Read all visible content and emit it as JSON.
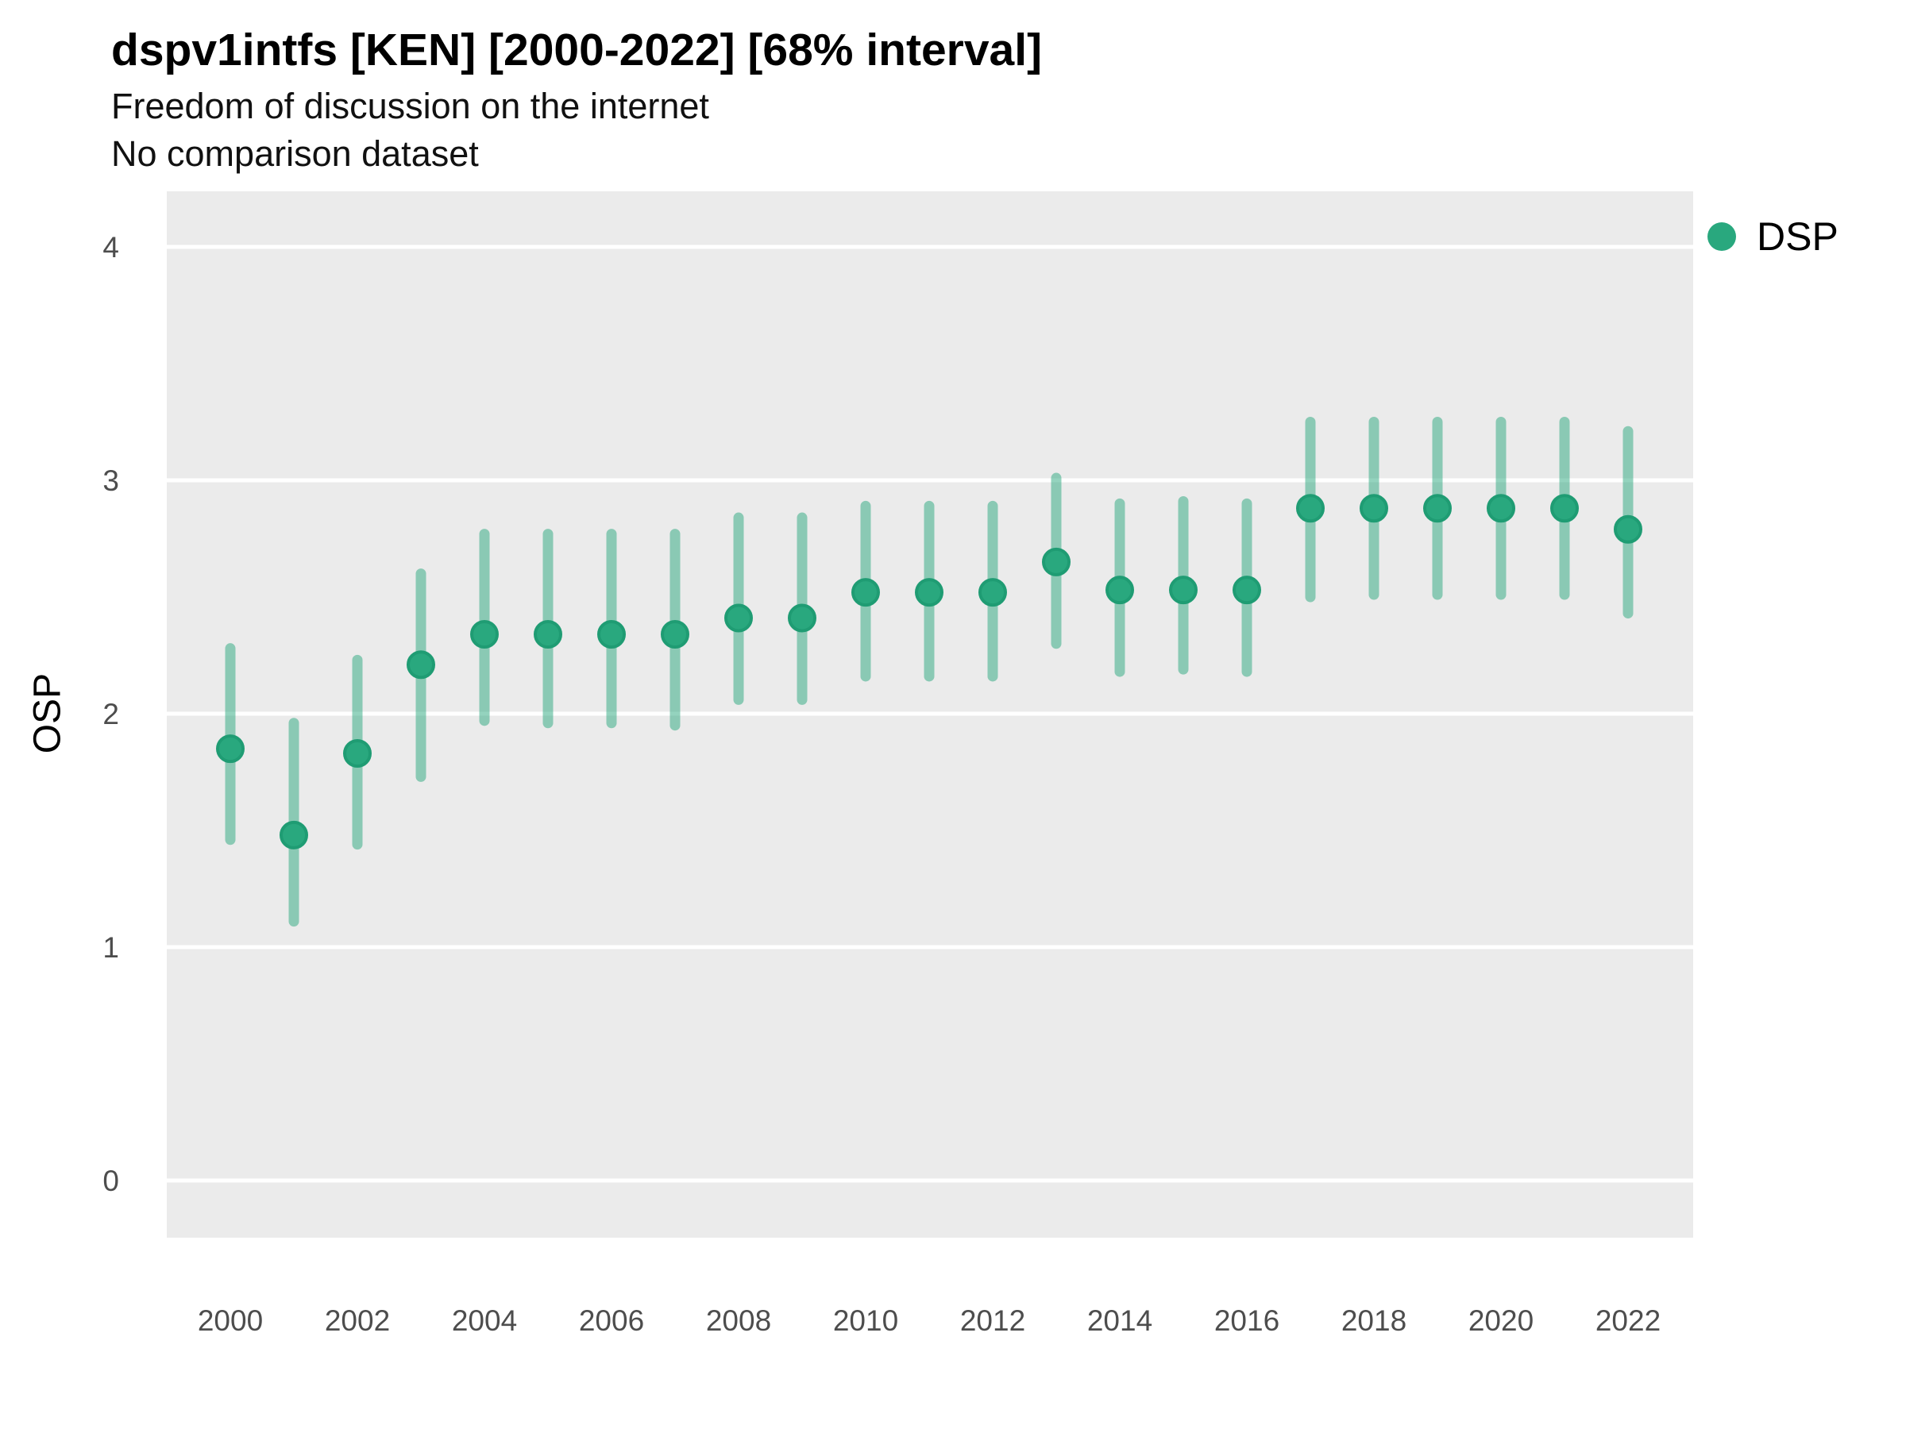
{
  "chart_data": {
    "type": "pointrange",
    "title": "dspv1intfs [KEN] [2000-2022] [68% interval]",
    "subtitle": "Freedom of discussion on the internet",
    "note": "No comparison dataset",
    "ylabel": "OSP",
    "xlabel": "",
    "interval_level": "68%",
    "legend_position": "right",
    "grid": "horizontal-major-only",
    "ylim": [
      -0.25,
      4.25
    ],
    "y_ticks": [
      0,
      1,
      2,
      3,
      4
    ],
    "x": [
      2000,
      2001,
      2002,
      2003,
      2004,
      2005,
      2006,
      2007,
      2008,
      2009,
      2010,
      2011,
      2012,
      2013,
      2014,
      2015,
      2016,
      2017,
      2018,
      2019,
      2020,
      2021,
      2022
    ],
    "x_tick_labels": [
      "2000",
      "2002",
      "2004",
      "2006",
      "2008",
      "2010",
      "2012",
      "2014",
      "2016",
      "2018",
      "2020",
      "2022"
    ],
    "series": [
      {
        "name": "DSP",
        "median": [
          1.85,
          1.48,
          1.83,
          2.21,
          2.34,
          2.34,
          2.34,
          2.34,
          2.41,
          2.41,
          2.52,
          2.52,
          2.52,
          2.65,
          2.53,
          2.53,
          2.53,
          2.88,
          2.88,
          2.88,
          2.88,
          2.88,
          2.79
        ],
        "lower": [
          1.46,
          1.11,
          1.44,
          1.73,
          1.97,
          1.96,
          1.96,
          1.95,
          2.06,
          2.06,
          2.16,
          2.16,
          2.16,
          2.3,
          2.18,
          2.19,
          2.18,
          2.5,
          2.51,
          2.51,
          2.51,
          2.51,
          2.43
        ],
        "upper": [
          2.28,
          1.96,
          2.23,
          2.6,
          2.77,
          2.77,
          2.77,
          2.77,
          2.84,
          2.84,
          2.89,
          2.89,
          2.89,
          3.01,
          2.9,
          2.91,
          2.9,
          3.25,
          3.25,
          3.25,
          3.25,
          3.25,
          3.21
        ]
      }
    ],
    "colors": {
      "point_fill": "#29a87e",
      "point_stroke": "#1f9c73",
      "interval_line": "rgba(42, 168, 126, 0.5)",
      "panel_bg": "#ebebeb",
      "gridline": "#ffffff",
      "tick_text": "#4d4d4d",
      "title_text": "#000000"
    }
  }
}
